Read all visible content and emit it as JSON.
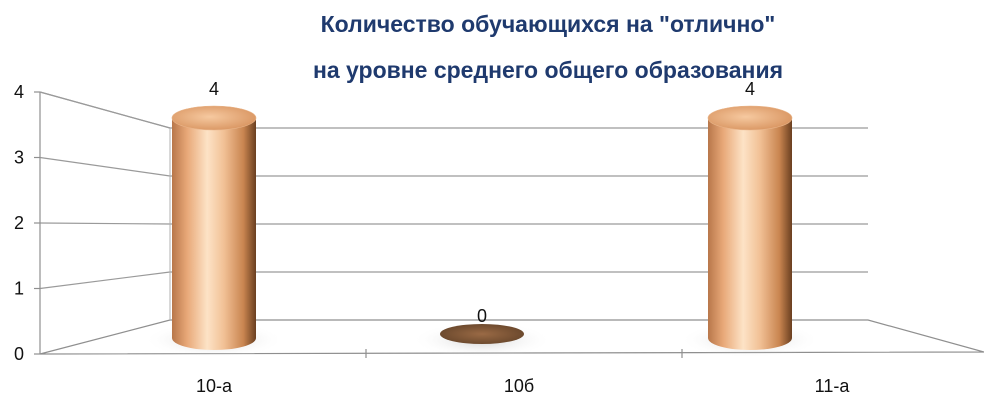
{
  "chart_data": {
    "type": "bar",
    "title_lines": [
      "Количество обучающихся на \"отлично\"",
      "на уровне среднего общего образования"
    ],
    "categories": [
      "10-а",
      "10б",
      "11-а"
    ],
    "values": [
      4,
      0,
      4
    ],
    "data_labels": [
      "4",
      "0",
      "4"
    ],
    "yticks": [
      "0",
      "1",
      "2",
      "3",
      "4"
    ],
    "ylim": [
      0,
      4
    ],
    "grid": true,
    "bar_style": "3d-cylinder",
    "bar_color": "#e8a878",
    "xlabel": "",
    "ylabel": ""
  }
}
